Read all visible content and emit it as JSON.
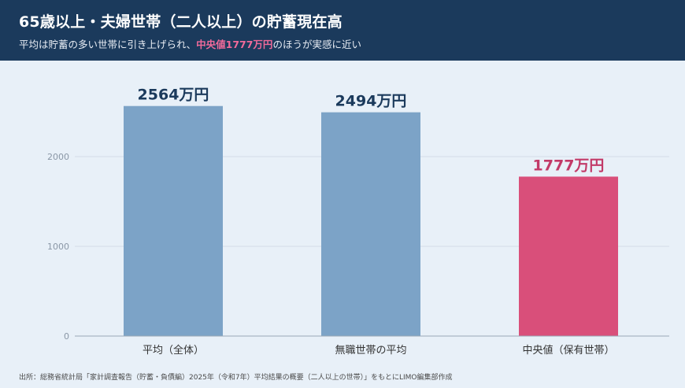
{
  "header": {
    "title": "65歳以上・夫婦世帯（二人以上）の貯蓄現在高",
    "subtitle_before": "平均は貯蓄の多い世帯に引き上げられ、",
    "subtitle_highlight": "中央値1777万円",
    "subtitle_after": "のほうが実感に近い"
  },
  "chart_data": {
    "type": "bar",
    "title": "",
    "xlabel": "",
    "ylabel": "",
    "categories": [
      "平均（全体）",
      "無職世帯の平均",
      "中央値（保有世帯）"
    ],
    "values": [
      2564,
      2494,
      1777
    ],
    "data_labels": [
      "2564万円",
      "2494万円",
      "1777万円"
    ],
    "unit": "万円",
    "ylim": [
      0,
      2700
    ],
    "yticks": [
      0,
      1000,
      2000
    ],
    "grid": true,
    "colors": [
      "#7ca3c7",
      "#7ca3c7",
      "#d94f7a"
    ],
    "label_colors": [
      "#1b3a5c",
      "#1b3a5c",
      "#c23a68"
    ]
  },
  "footer": {
    "source": "出所：総務省統計局「家計調査報告（貯蓄・負債編）2025年（令和7年）平均結果の概要（二人以上の世帯）」をもとにLIMO編集部作成"
  }
}
